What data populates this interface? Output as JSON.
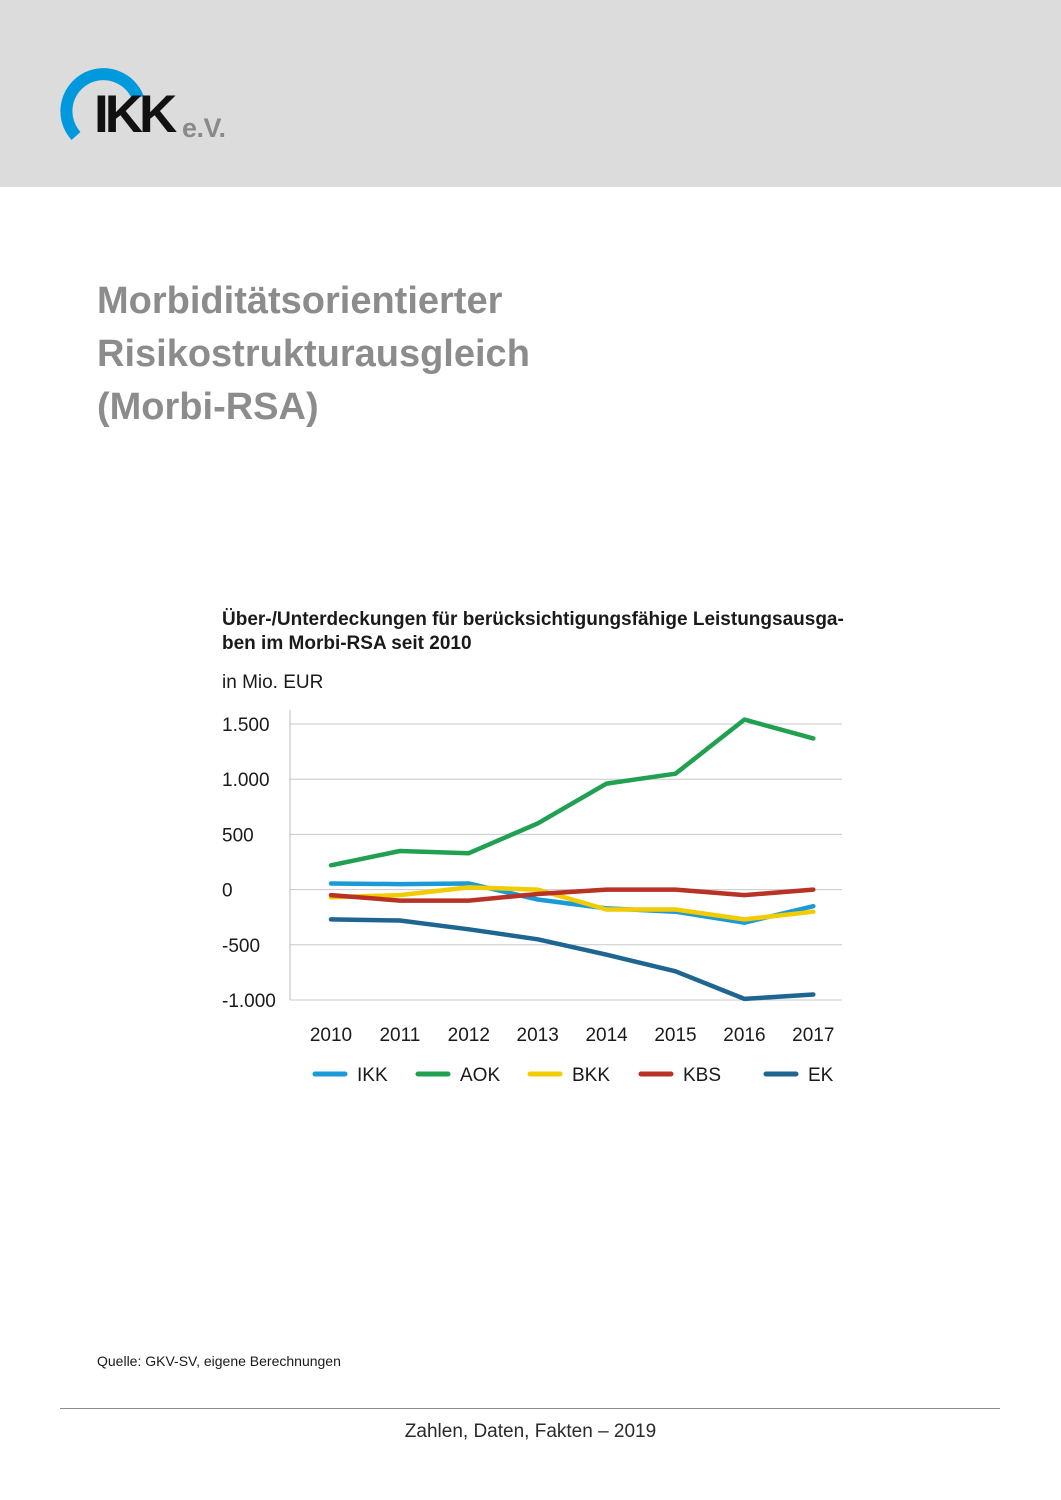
{
  "header": {
    "logo_text": "IKK",
    "logo_suffix": "e.V.",
    "colors": {
      "band": "#dcdcdc",
      "logo_ring": "#0099dd"
    }
  },
  "page_title_lines": [
    "Morbiditätsorientierter",
    "Risikostrukturausgleich",
    "(Morbi-RSA)"
  ],
  "chart_data": {
    "type": "line",
    "title_lines": [
      "Über-/Unterdeckungen für berücksichtigungsfähige Leistungsausga-",
      "ben im Morbi-RSA seit 2010"
    ],
    "ylabel": "in Mio. EUR",
    "xlabel": "",
    "categories": [
      "2010",
      "2011",
      "2012",
      "2013",
      "2014",
      "2015",
      "2016",
      "2017"
    ],
    "ylim": [
      -1000,
      1500
    ],
    "yticks": [
      1500,
      1000,
      500,
      0,
      -500,
      -1000
    ],
    "ytick_labels": [
      "1.500",
      "1.000",
      "500",
      "0",
      "-500",
      "-1.000"
    ],
    "grid": true,
    "legend_position": "bottom",
    "series": [
      {
        "name": "IKK",
        "color": "#1a9ad6",
        "values": [
          55,
          50,
          55,
          -90,
          -170,
          -200,
          -300,
          -150
        ]
      },
      {
        "name": "AOK",
        "color": "#22a052",
        "values": [
          220,
          350,
          330,
          600,
          960,
          1050,
          1540,
          1370
        ]
      },
      {
        "name": "BKK",
        "color": "#f2cc00",
        "values": [
          -70,
          -50,
          20,
          0,
          -180,
          -180,
          -270,
          -200
        ]
      },
      {
        "name": "KBS",
        "color": "#b83225",
        "values": [
          -50,
          -100,
          -100,
          -40,
          0,
          0,
          -50,
          0
        ]
      },
      {
        "name": "EK",
        "color": "#1e6591",
        "values": [
          -270,
          -280,
          -360,
          -450,
          -590,
          -740,
          -990,
          -950
        ]
      }
    ]
  },
  "source_note": "Quelle: GKV-SV, eigene Berechnungen",
  "footer": {
    "text": "Zahlen, Daten, Fakten – 2019"
  }
}
